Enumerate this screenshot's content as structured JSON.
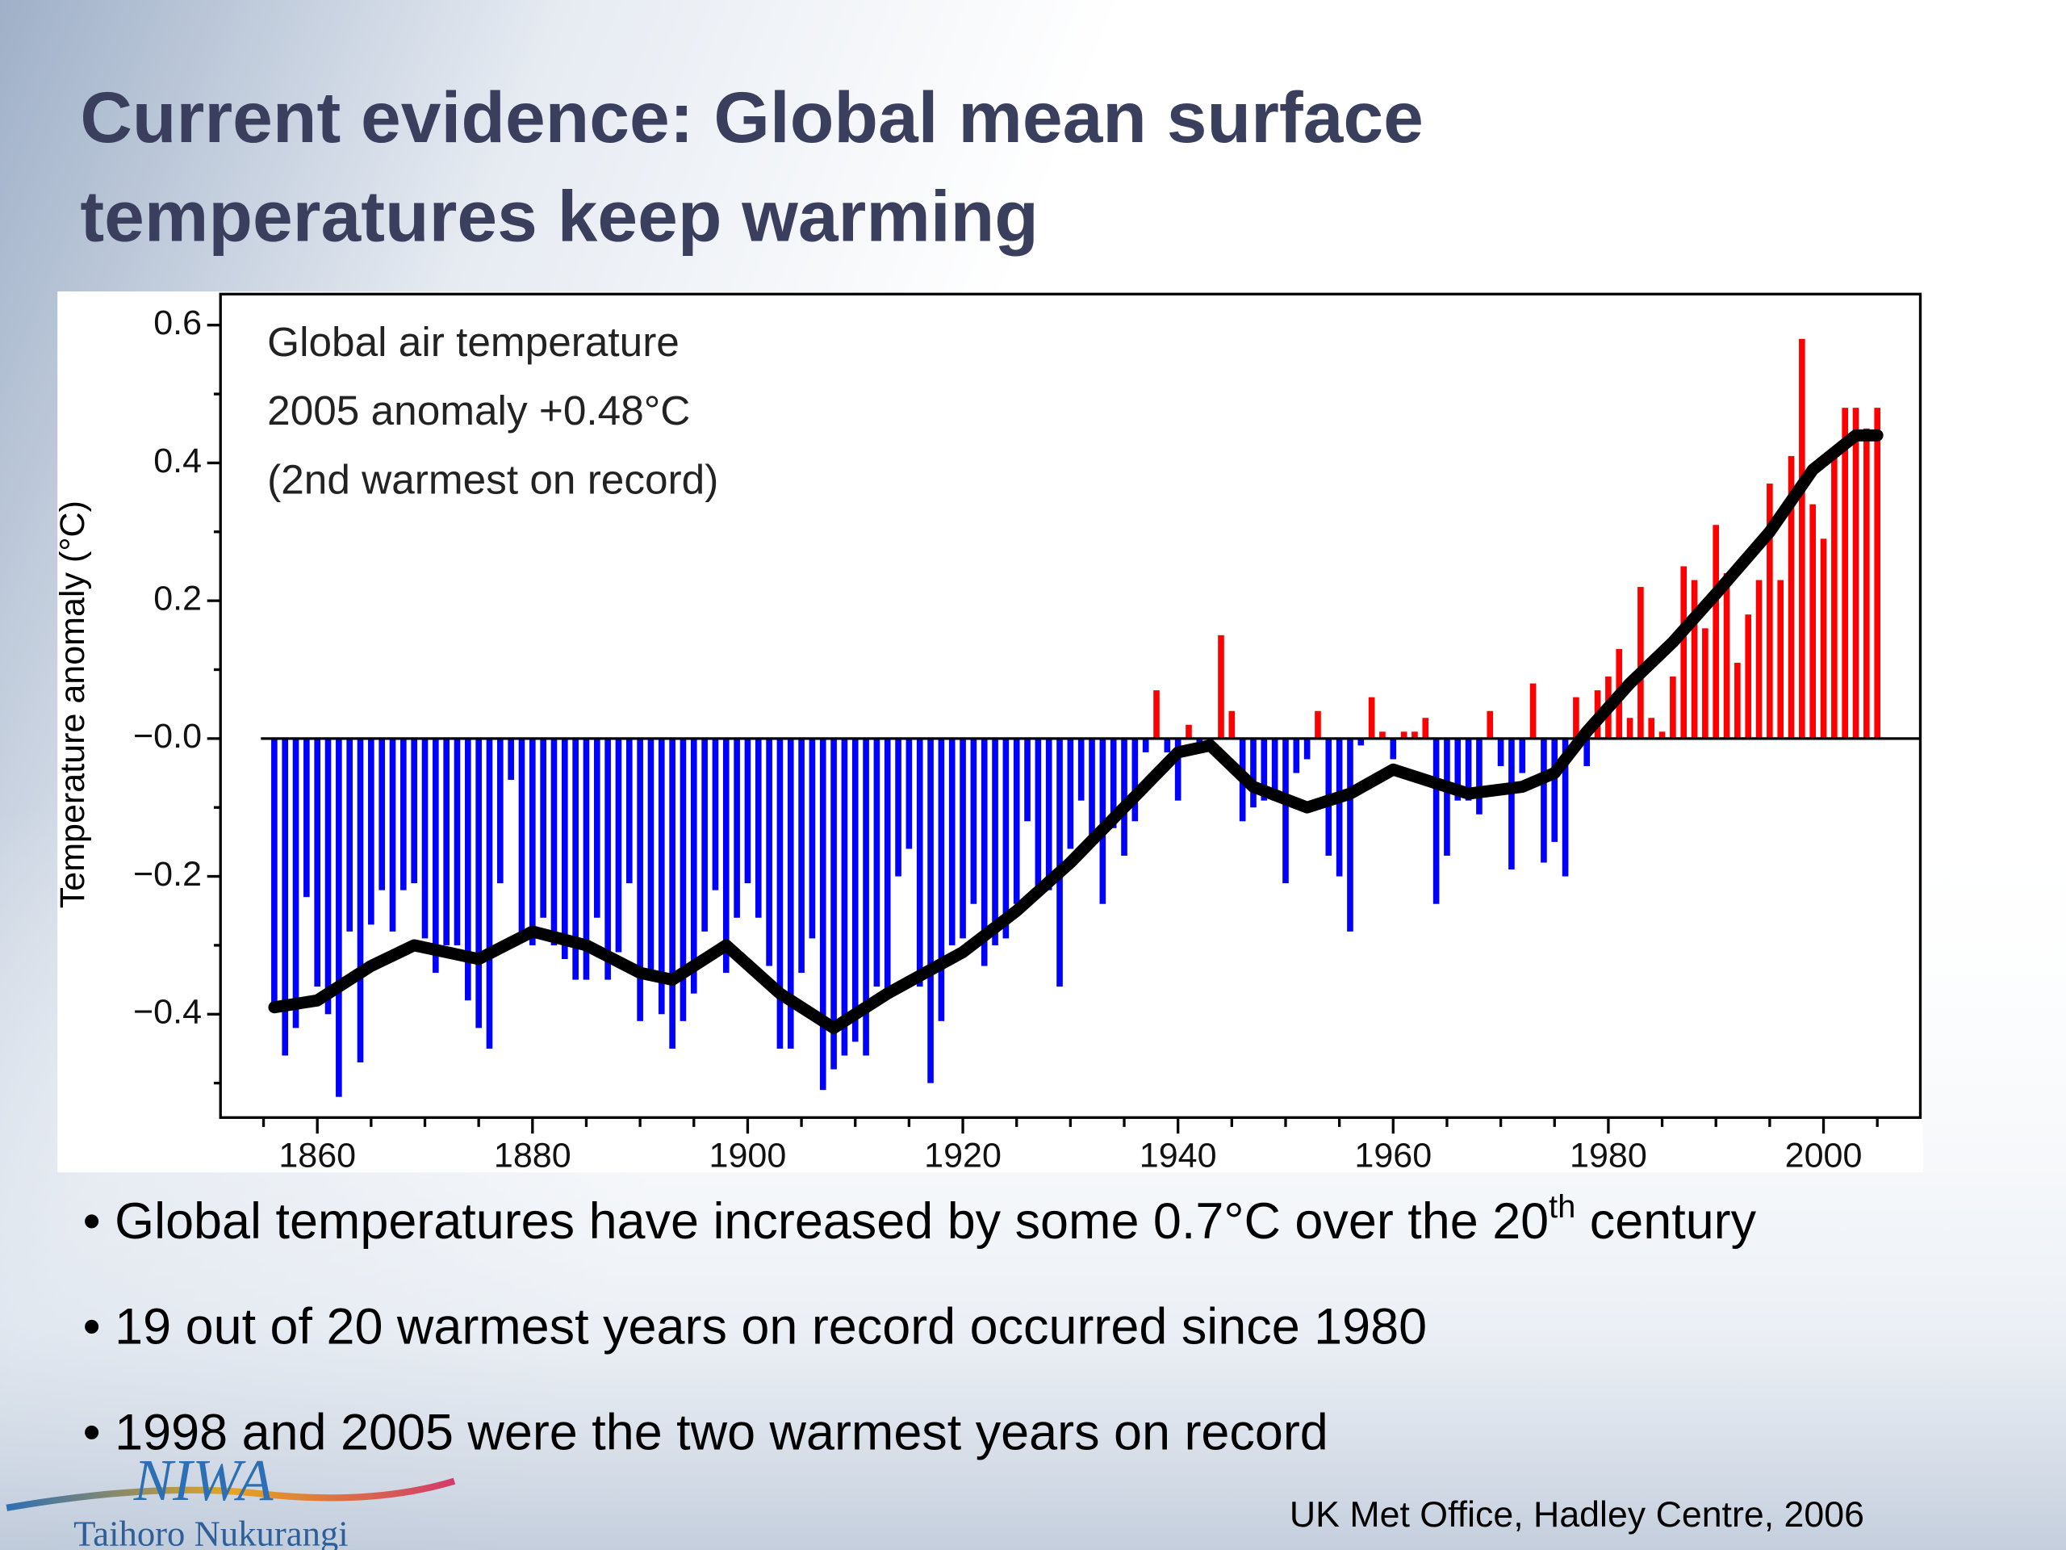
{
  "title": "Current evidence: Global mean surface temperatures keep warming",
  "title_lines": [
    "Current evidence: Global mean surface",
    "temperatures keep warming"
  ],
  "bullets": [
    [
      "• Global temperatures have increased by some 0.7°C over the 20",
      "th",
      " century"
    ],
    [
      "• 19 out of 20 warmest years on record occurred since 1980"
    ],
    [
      "•  1998 and 2005 were the two warmest years on record"
    ]
  ],
  "source": "UK Met Office, Hadley Centre, 2006",
  "logo": {
    "name": "NIWA",
    "tagline": "Taihoro Nukurangi"
  },
  "chart_data": {
    "type": "bar",
    "ylabel": "Temperature anomaly (°C)",
    "annotations": [
      "Global air temperature",
      "2005 anomaly +0.48°C",
      "(2nd warmest on record)"
    ],
    "xlim": [
      1851,
      2009
    ],
    "ylim": [
      -0.55,
      0.645
    ],
    "xticks": [
      1860,
      1880,
      1900,
      1920,
      1940,
      1960,
      1980,
      2000
    ],
    "xminorticks": [
      1855,
      1865,
      1870,
      1875,
      1885,
      1890,
      1895,
      1905,
      1910,
      1915,
      1925,
      1930,
      1935,
      1945,
      1950,
      1955,
      1965,
      1970,
      1975,
      1985,
      1990,
      1995,
      2005
    ],
    "yticks": [
      {
        "value": -0.4,
        "label": "−0.4"
      },
      {
        "value": -0.2,
        "label": "−0.2"
      },
      {
        "value": 0,
        "label": "−0.0"
      },
      0.2,
      0.4,
      0.6
    ],
    "yminorticks": [
      -0.5,
      -0.3,
      -0.1,
      0.1,
      0.3,
      0.5
    ],
    "positive_color": "#ff0000",
    "negative_color": "#0000ff",
    "x": [
      1856,
      1857,
      1858,
      1859,
      1860,
      1861,
      1862,
      1863,
      1864,
      1865,
      1866,
      1867,
      1868,
      1869,
      1870,
      1871,
      1872,
      1873,
      1874,
      1875,
      1876,
      1877,
      1878,
      1879,
      1880,
      1881,
      1882,
      1883,
      1884,
      1885,
      1886,
      1887,
      1888,
      1889,
      1890,
      1891,
      1892,
      1893,
      1894,
      1895,
      1896,
      1897,
      1898,
      1899,
      1900,
      1901,
      1902,
      1903,
      1904,
      1905,
      1906,
      1907,
      1908,
      1909,
      1910,
      1911,
      1912,
      1913,
      1914,
      1915,
      1916,
      1917,
      1918,
      1919,
      1920,
      1921,
      1922,
      1923,
      1924,
      1925,
      1926,
      1927,
      1928,
      1929,
      1930,
      1931,
      1932,
      1933,
      1934,
      1935,
      1936,
      1937,
      1938,
      1939,
      1940,
      1941,
      1942,
      1943,
      1944,
      1945,
      1946,
      1947,
      1948,
      1949,
      1950,
      1951,
      1952,
      1953,
      1954,
      1955,
      1956,
      1957,
      1958,
      1959,
      1960,
      1961,
      1962,
      1963,
      1964,
      1965,
      1966,
      1967,
      1968,
      1969,
      1970,
      1971,
      1972,
      1973,
      1974,
      1975,
      1976,
      1977,
      1978,
      1979,
      1980,
      1981,
      1982,
      1983,
      1984,
      1985,
      1986,
      1987,
      1988,
      1989,
      1990,
      1991,
      1992,
      1993,
      1994,
      1995,
      1996,
      1997,
      1998,
      1999,
      2000,
      2001,
      2002,
      2003,
      2004,
      2005
    ],
    "values": [
      -0.39,
      -0.46,
      -0.42,
      -0.23,
      -0.36,
      -0.4,
      -0.52,
      -0.28,
      -0.47,
      -0.27,
      -0.22,
      -0.28,
      -0.22,
      -0.21,
      -0.29,
      -0.34,
      -0.3,
      -0.3,
      -0.38,
      -0.42,
      -0.45,
      -0.21,
      -0.06,
      -0.29,
      -0.3,
      -0.26,
      -0.3,
      -0.32,
      -0.35,
      -0.35,
      -0.26,
      -0.35,
      -0.31,
      -0.21,
      -0.41,
      -0.34,
      -0.4,
      -0.45,
      -0.41,
      -0.37,
      -0.28,
      -0.22,
      -0.34,
      -0.26,
      -0.21,
      -0.26,
      -0.33,
      -0.45,
      -0.45,
      -0.34,
      -0.29,
      -0.51,
      -0.48,
      -0.46,
      -0.44,
      -0.46,
      -0.36,
      -0.37,
      -0.2,
      -0.16,
      -0.36,
      -0.5,
      -0.41,
      -0.3,
      -0.29,
      -0.24,
      -0.33,
      -0.3,
      -0.29,
      -0.24,
      -0.12,
      -0.22,
      -0.22,
      -0.36,
      -0.16,
      -0.09,
      -0.15,
      -0.24,
      -0.13,
      -0.17,
      -0.12,
      -0.02,
      0.07,
      -0.02,
      -0.09,
      0.02,
      -0.01,
      -0.01,
      0.15,
      0.04,
      -0.12,
      -0.1,
      -0.09,
      -0.09,
      -0.21,
      -0.05,
      -0.03,
      0.04,
      -0.17,
      -0.2,
      -0.28,
      -0.01,
      0.06,
      0.01,
      -0.03,
      0.01,
      0.01,
      0.03,
      -0.24,
      -0.17,
      -0.09,
      -0.09,
      -0.11,
      0.04,
      -0.04,
      -0.19,
      -0.05,
      0.08,
      -0.18,
      -0.15,
      -0.2,
      0.06,
      -0.04,
      0.07,
      0.09,
      0.13,
      0.03,
      0.22,
      0.03,
      0.01,
      0.09,
      0.25,
      0.23,
      0.16,
      0.31,
      0.24,
      0.11,
      0.18,
      0.23,
      0.37,
      0.23,
      0.41,
      0.58,
      0.34,
      0.29,
      0.42,
      0.48,
      0.48,
      0.45,
      0.48
    ],
    "smooth": {
      "color": "#000000",
      "x": [
        1856,
        1860,
        1865,
        1869,
        1875,
        1880,
        1885,
        1890,
        1893,
        1898,
        1903,
        1908,
        1913,
        1920,
        1925,
        1930,
        1935,
        1940,
        1943,
        1947,
        1952,
        1956,
        1960,
        1963,
        1967,
        1972,
        1975,
        1978,
        1982,
        1986,
        1990,
        1995,
        1999,
        2003,
        2005
      ],
      "values": [
        -0.39,
        -0.38,
        -0.33,
        -0.3,
        -0.32,
        -0.28,
        -0.3,
        -0.34,
        -0.35,
        -0.3,
        -0.37,
        -0.42,
        -0.37,
        -0.31,
        -0.25,
        -0.18,
        -0.1,
        -0.02,
        -0.01,
        -0.07,
        -0.1,
        -0.08,
        -0.045,
        -0.06,
        -0.08,
        -0.07,
        -0.05,
        0.01,
        0.08,
        0.14,
        0.21,
        0.3,
        0.39,
        0.44,
        0.44
      ]
    }
  }
}
